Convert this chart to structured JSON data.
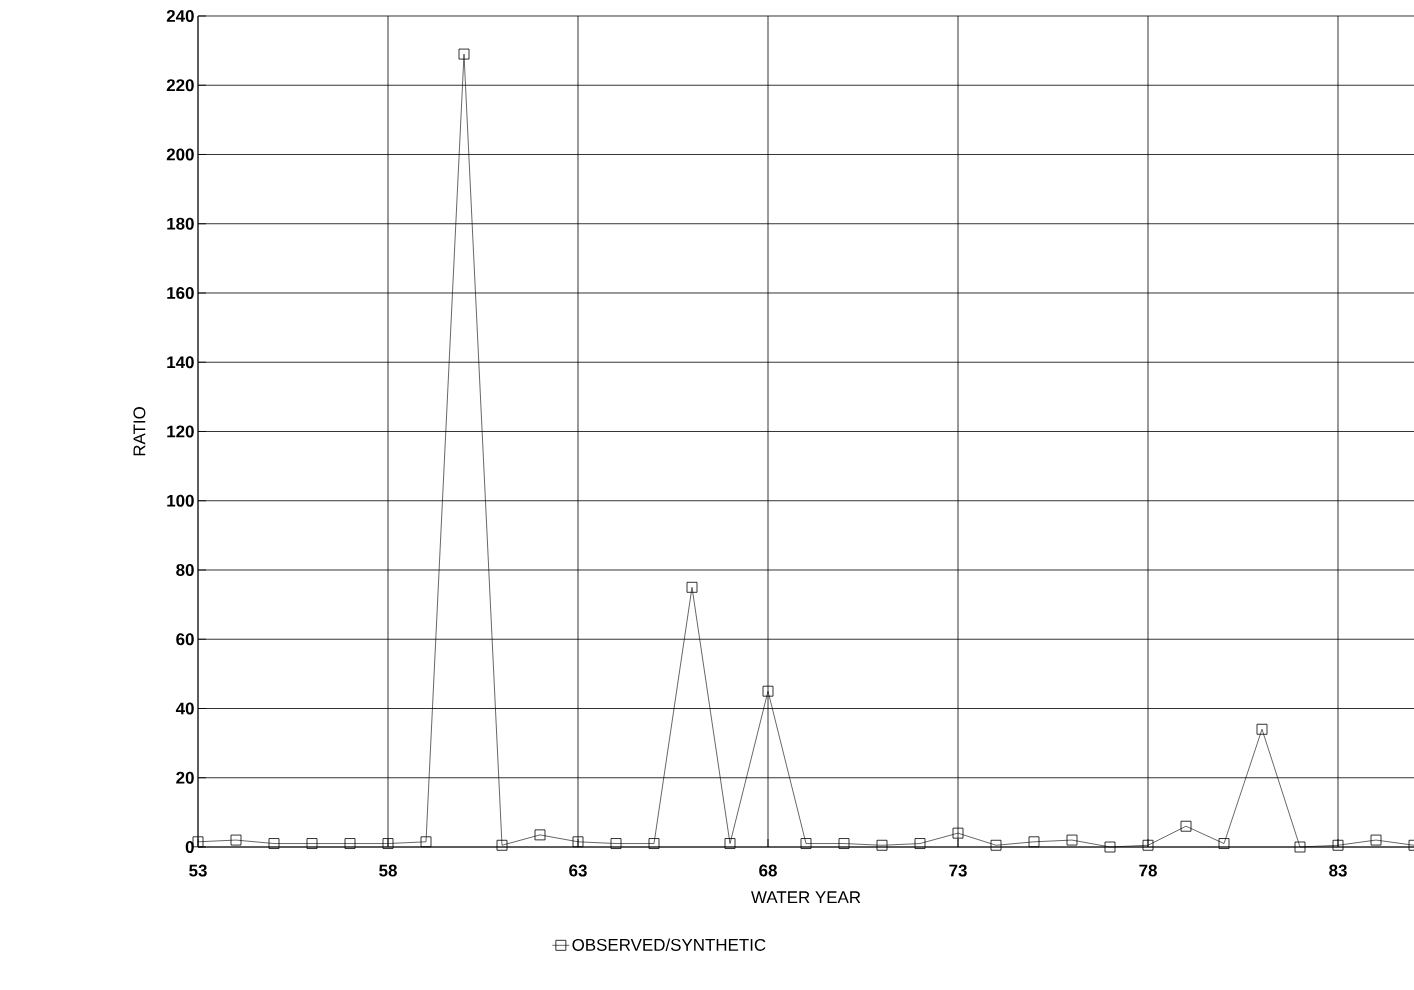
{
  "chart_data": {
    "type": "line",
    "xlabel": "WATER YEAR",
    "ylabel": "RATIO",
    "x": [
      53,
      54,
      55,
      56,
      57,
      58,
      59,
      60,
      61,
      62,
      63,
      64,
      65,
      66,
      67,
      68,
      69,
      70,
      71,
      72,
      73,
      74,
      75,
      76,
      77,
      78,
      79,
      80,
      81,
      82,
      83,
      84,
      85
    ],
    "series": [
      {
        "name": "OBSERVED/SYNTHETIC",
        "color": "#000000",
        "values": [
          1.5,
          2,
          1,
          1,
          1,
          1,
          1.5,
          229,
          0.5,
          3.5,
          1.5,
          1,
          1,
          75,
          1,
          45,
          1,
          1,
          0.5,
          1,
          4,
          0.5,
          1.5,
          2,
          0,
          0.5,
          6,
          1,
          34,
          0,
          0.5,
          2,
          0.5
        ]
      }
    ],
    "xlim": [
      53,
      85
    ],
    "ylim": [
      0,
      240
    ],
    "xticks": [
      53,
      58,
      63,
      68,
      73,
      78,
      83
    ],
    "yticks": [
      0,
      20,
      40,
      60,
      80,
      100,
      120,
      140,
      160,
      180,
      200,
      220,
      240
    ],
    "grid": true,
    "legend": "bottom",
    "marker": "square",
    "line_style": "solid"
  }
}
